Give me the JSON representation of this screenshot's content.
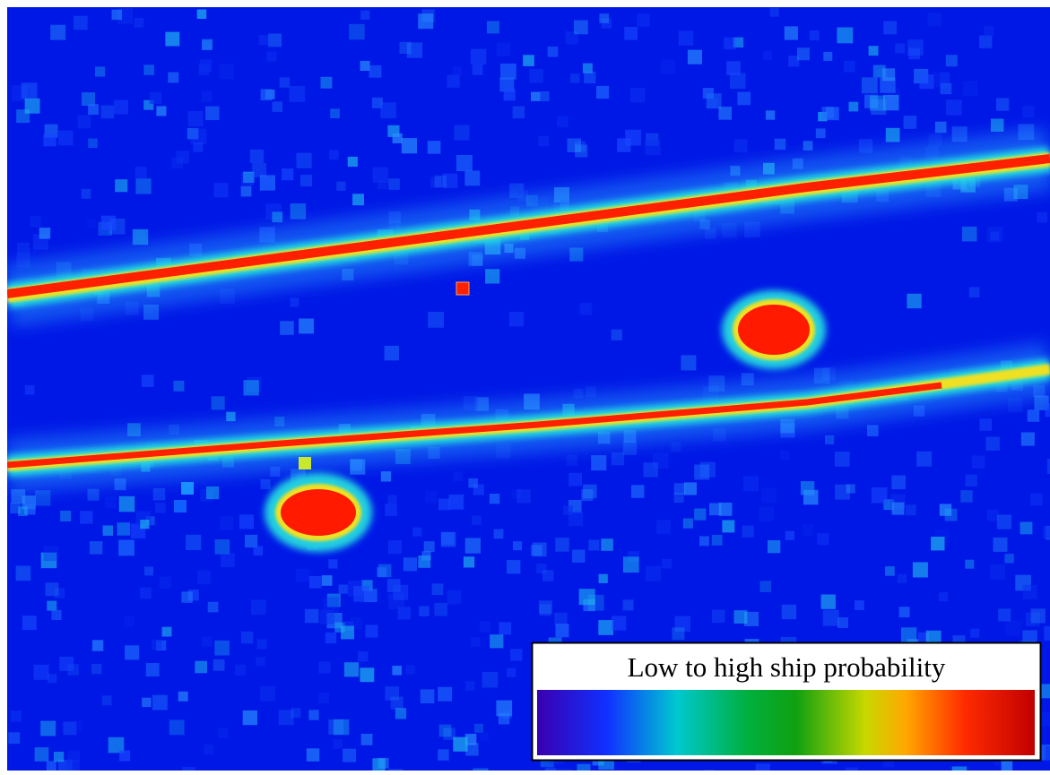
{
  "legend": {
    "title": "Low to high ship probability"
  }
}
